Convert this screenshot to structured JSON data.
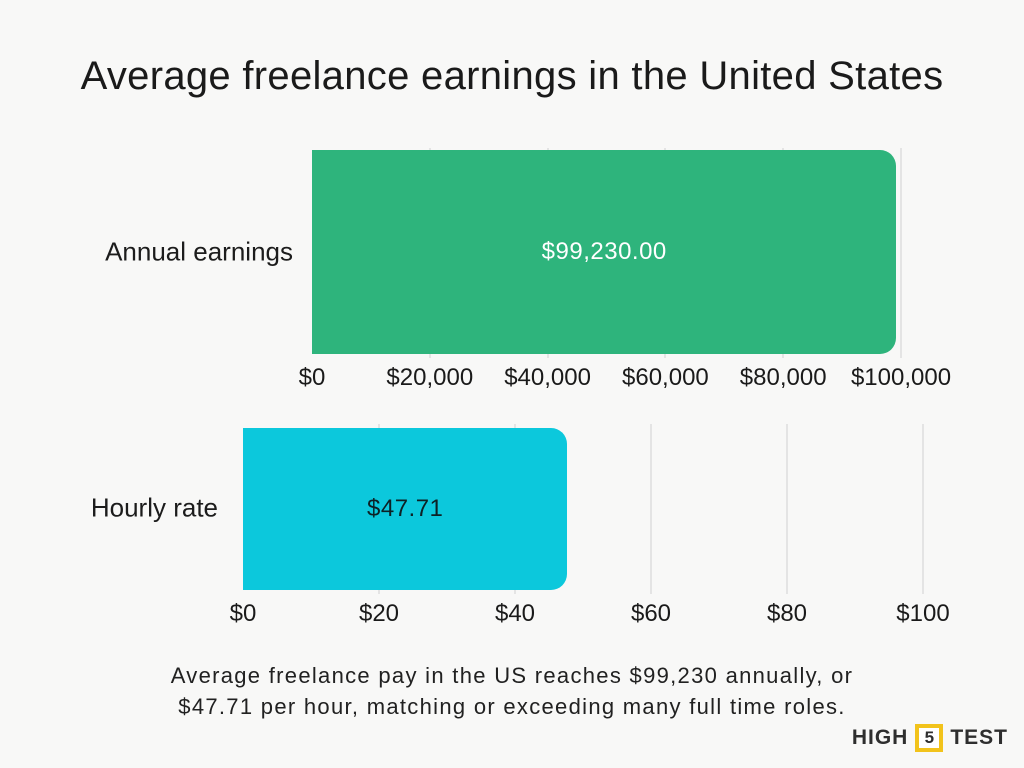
{
  "title": "Average freelance earnings in the United States",
  "caption": {
    "line1": "Average freelance pay in the US reaches $99,230 annually, or",
    "line2": "$47.71 per hour, matching or exceeding many full time roles."
  },
  "logo": {
    "word_left": "HIGH",
    "number": "5",
    "word_right": "TEST",
    "accent_color": "#f2c31b"
  },
  "colors": {
    "background": "#f8f8f7",
    "gridline": "#e4e4e4",
    "text_dark": "#1a1a1a"
  },
  "chart_data": [
    {
      "type": "bar",
      "orientation": "horizontal",
      "categories": [
        "Annual earnings"
      ],
      "values": [
        99230
      ],
      "value_label": "$99,230.00",
      "value_label_color": "#ffffff",
      "bar_color": "#2eb47c",
      "xlim": [
        0,
        100000
      ],
      "x_tick_values": [
        0,
        20000,
        40000,
        60000,
        80000,
        100000
      ],
      "x_ticks": [
        "$0",
        "$20,000",
        "$40,000",
        "$60,000",
        "$80,000",
        "$100,000"
      ],
      "grid": true,
      "legend": "none"
    },
    {
      "type": "bar",
      "orientation": "horizontal",
      "categories": [
        "Hourly rate"
      ],
      "values": [
        47.71
      ],
      "value_label": "$47.71",
      "value_label_color": "#0d2125",
      "bar_color": "#0cc8dc",
      "xlim": [
        0,
        100
      ],
      "x_tick_values": [
        0,
        20,
        40,
        60,
        80,
        100
      ],
      "x_ticks": [
        "$0",
        "$20",
        "$40",
        "$60",
        "$80",
        "$100"
      ],
      "grid": true,
      "legend": "none"
    }
  ]
}
